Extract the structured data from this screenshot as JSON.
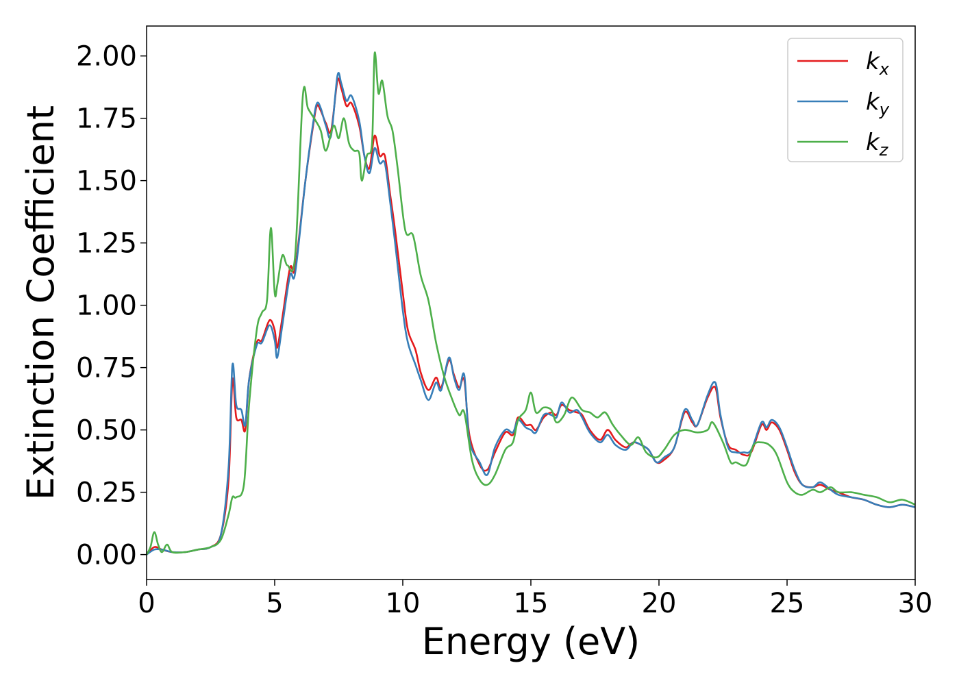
{
  "chart_data": {
    "type": "line",
    "xlabel": "Energy (eV)",
    "ylabel": "Extinction Coefficient",
    "xlim": [
      0,
      30
    ],
    "ylim": [
      -0.1,
      2.12
    ],
    "xticks": [
      "0",
      "5",
      "10",
      "15",
      "20",
      "25",
      "30"
    ],
    "yticks": [
      "0.00",
      "0.25",
      "0.50",
      "0.75",
      "1.00",
      "1.25",
      "1.50",
      "1.75",
      "2.00"
    ],
    "grid": false,
    "legend_position": "top-right",
    "legend_base": "k",
    "series": [
      {
        "name": "kx",
        "legend_sub": "x",
        "color": "#e41a1c",
        "points": [
          [
            0,
            0
          ],
          [
            0.3,
            0.03
          ],
          [
            0.6,
            0.02
          ],
          [
            1,
            0.01
          ],
          [
            1.5,
            0.01
          ],
          [
            2,
            0.02
          ],
          [
            2.5,
            0.03
          ],
          [
            2.9,
            0.08
          ],
          [
            3.2,
            0.3
          ],
          [
            3.35,
            0.7
          ],
          [
            3.5,
            0.55
          ],
          [
            3.7,
            0.54
          ],
          [
            3.85,
            0.5
          ],
          [
            4,
            0.7
          ],
          [
            4.3,
            0.85
          ],
          [
            4.5,
            0.86
          ],
          [
            4.8,
            0.94
          ],
          [
            5,
            0.9
          ],
          [
            5.1,
            0.83
          ],
          [
            5.3,
            0.95
          ],
          [
            5.6,
            1.15
          ],
          [
            5.8,
            1.15
          ],
          [
            6.2,
            1.5
          ],
          [
            6.5,
            1.72
          ],
          [
            6.65,
            1.8
          ],
          [
            6.8,
            1.78
          ],
          [
            7,
            1.73
          ],
          [
            7.2,
            1.7
          ],
          [
            7.45,
            1.9
          ],
          [
            7.6,
            1.87
          ],
          [
            7.8,
            1.8
          ],
          [
            8,
            1.81
          ],
          [
            8.3,
            1.72
          ],
          [
            8.5,
            1.6
          ],
          [
            8.7,
            1.55
          ],
          [
            8.9,
            1.68
          ],
          [
            9.1,
            1.6
          ],
          [
            9.3,
            1.6
          ],
          [
            9.5,
            1.45
          ],
          [
            9.7,
            1.3
          ],
          [
            10,
            1.05
          ],
          [
            10.2,
            0.9
          ],
          [
            10.5,
            0.82
          ],
          [
            10.7,
            0.73
          ],
          [
            11,
            0.66
          ],
          [
            11.3,
            0.71
          ],
          [
            11.5,
            0.67
          ],
          [
            11.8,
            0.78
          ],
          [
            12,
            0.72
          ],
          [
            12.2,
            0.67
          ],
          [
            12.4,
            0.7
          ],
          [
            12.6,
            0.48
          ],
          [
            13,
            0.36
          ],
          [
            13.3,
            0.34
          ],
          [
            13.6,
            0.41
          ],
          [
            14,
            0.49
          ],
          [
            14.3,
            0.48
          ],
          [
            14.5,
            0.55
          ],
          [
            14.8,
            0.52
          ],
          [
            15,
            0.52
          ],
          [
            15.2,
            0.5
          ],
          [
            15.5,
            0.55
          ],
          [
            15.8,
            0.57
          ],
          [
            16,
            0.56
          ],
          [
            16.2,
            0.6
          ],
          [
            16.5,
            0.58
          ],
          [
            16.8,
            0.57
          ],
          [
            17,
            0.56
          ],
          [
            17.3,
            0.5
          ],
          [
            17.7,
            0.46
          ],
          [
            18,
            0.5
          ],
          [
            18.3,
            0.46
          ],
          [
            18.7,
            0.43
          ],
          [
            19,
            0.45
          ],
          [
            19.3,
            0.44
          ],
          [
            19.6,
            0.42
          ],
          [
            19.9,
            0.37
          ],
          [
            20.2,
            0.38
          ],
          [
            20.6,
            0.43
          ],
          [
            21,
            0.57
          ],
          [
            21.3,
            0.53
          ],
          [
            21.5,
            0.52
          ],
          [
            21.9,
            0.63
          ],
          [
            22.2,
            0.67
          ],
          [
            22.4,
            0.55
          ],
          [
            22.7,
            0.44
          ],
          [
            23,
            0.42
          ],
          [
            23.3,
            0.4
          ],
          [
            23.6,
            0.41
          ],
          [
            24,
            0.52
          ],
          [
            24.2,
            0.5
          ],
          [
            24.4,
            0.53
          ],
          [
            24.7,
            0.5
          ],
          [
            25,
            0.42
          ],
          [
            25.3,
            0.33
          ],
          [
            25.6,
            0.28
          ],
          [
            26,
            0.27
          ],
          [
            26.3,
            0.28
          ],
          [
            26.7,
            0.26
          ],
          [
            27,
            0.25
          ],
          [
            27.5,
            0.23
          ],
          [
            28,
            0.22
          ],
          [
            28.5,
            0.2
          ],
          [
            29,
            0.19
          ],
          [
            29.5,
            0.2
          ],
          [
            30,
            0.19
          ]
        ]
      },
      {
        "name": "ky",
        "legend_sub": "y",
        "color": "#377eb8",
        "points": [
          [
            0,
            0
          ],
          [
            0.3,
            0.02
          ],
          [
            0.6,
            0.02
          ],
          [
            1,
            0.01
          ],
          [
            1.5,
            0.01
          ],
          [
            2,
            0.02
          ],
          [
            2.5,
            0.03
          ],
          [
            2.9,
            0.08
          ],
          [
            3.2,
            0.35
          ],
          [
            3.35,
            0.76
          ],
          [
            3.5,
            0.6
          ],
          [
            3.7,
            0.58
          ],
          [
            3.85,
            0.52
          ],
          [
            4,
            0.7
          ],
          [
            4.3,
            0.84
          ],
          [
            4.5,
            0.85
          ],
          [
            4.8,
            0.92
          ],
          [
            5,
            0.86
          ],
          [
            5.1,
            0.79
          ],
          [
            5.3,
            0.92
          ],
          [
            5.6,
            1.12
          ],
          [
            5.8,
            1.13
          ],
          [
            6.2,
            1.5
          ],
          [
            6.5,
            1.73
          ],
          [
            6.65,
            1.81
          ],
          [
            6.8,
            1.79
          ],
          [
            7,
            1.72
          ],
          [
            7.2,
            1.68
          ],
          [
            7.45,
            1.92
          ],
          [
            7.6,
            1.89
          ],
          [
            7.8,
            1.82
          ],
          [
            8,
            1.84
          ],
          [
            8.3,
            1.74
          ],
          [
            8.5,
            1.6
          ],
          [
            8.7,
            1.53
          ],
          [
            8.9,
            1.63
          ],
          [
            9.1,
            1.57
          ],
          [
            9.3,
            1.57
          ],
          [
            9.5,
            1.42
          ],
          [
            9.7,
            1.25
          ],
          [
            10,
            0.98
          ],
          [
            10.2,
            0.85
          ],
          [
            10.5,
            0.76
          ],
          [
            10.7,
            0.7
          ],
          [
            11,
            0.62
          ],
          [
            11.3,
            0.69
          ],
          [
            11.5,
            0.66
          ],
          [
            11.8,
            0.79
          ],
          [
            12,
            0.71
          ],
          [
            12.2,
            0.66
          ],
          [
            12.4,
            0.72
          ],
          [
            12.6,
            0.46
          ],
          [
            13,
            0.37
          ],
          [
            13.3,
            0.32
          ],
          [
            13.6,
            0.43
          ],
          [
            14,
            0.5
          ],
          [
            14.3,
            0.49
          ],
          [
            14.5,
            0.54
          ],
          [
            14.8,
            0.51
          ],
          [
            15,
            0.5
          ],
          [
            15.2,
            0.49
          ],
          [
            15.5,
            0.56
          ],
          [
            15.8,
            0.56
          ],
          [
            16,
            0.55
          ],
          [
            16.2,
            0.61
          ],
          [
            16.5,
            0.57
          ],
          [
            16.8,
            0.58
          ],
          [
            17,
            0.55
          ],
          [
            17.3,
            0.49
          ],
          [
            17.7,
            0.45
          ],
          [
            18,
            0.48
          ],
          [
            18.3,
            0.44
          ],
          [
            18.7,
            0.42
          ],
          [
            19,
            0.45
          ],
          [
            19.3,
            0.44
          ],
          [
            19.6,
            0.42
          ],
          [
            19.9,
            0.37
          ],
          [
            20.2,
            0.39
          ],
          [
            20.6,
            0.43
          ],
          [
            21,
            0.58
          ],
          [
            21.3,
            0.54
          ],
          [
            21.5,
            0.52
          ],
          [
            21.9,
            0.64
          ],
          [
            22.2,
            0.69
          ],
          [
            22.4,
            0.56
          ],
          [
            22.7,
            0.43
          ],
          [
            23,
            0.41
          ],
          [
            23.3,
            0.41
          ],
          [
            23.6,
            0.42
          ],
          [
            24,
            0.53
          ],
          [
            24.2,
            0.51
          ],
          [
            24.4,
            0.54
          ],
          [
            24.7,
            0.51
          ],
          [
            25,
            0.43
          ],
          [
            25.3,
            0.34
          ],
          [
            25.6,
            0.28
          ],
          [
            26,
            0.27
          ],
          [
            26.3,
            0.29
          ],
          [
            26.7,
            0.26
          ],
          [
            27,
            0.24
          ],
          [
            27.5,
            0.23
          ],
          [
            28,
            0.22
          ],
          [
            28.5,
            0.2
          ],
          [
            29,
            0.19
          ],
          [
            29.5,
            0.2
          ],
          [
            30,
            0.19
          ]
        ]
      },
      {
        "name": "kz",
        "legend_sub": "z",
        "color": "#4daf4a",
        "points": [
          [
            0,
            0
          ],
          [
            0.15,
            0.03
          ],
          [
            0.3,
            0.09
          ],
          [
            0.45,
            0.04
          ],
          [
            0.6,
            0.01
          ],
          [
            0.8,
            0.04
          ],
          [
            1,
            0.01
          ],
          [
            1.5,
            0.01
          ],
          [
            2,
            0.02
          ],
          [
            2.5,
            0.03
          ],
          [
            2.9,
            0.06
          ],
          [
            3.2,
            0.16
          ],
          [
            3.35,
            0.23
          ],
          [
            3.5,
            0.23
          ],
          [
            3.8,
            0.28
          ],
          [
            4,
            0.6
          ],
          [
            4.3,
            0.9
          ],
          [
            4.5,
            0.97
          ],
          [
            4.7,
            1.02
          ],
          [
            4.85,
            1.31
          ],
          [
            5,
            1.05
          ],
          [
            5.1,
            1.08
          ],
          [
            5.3,
            1.2
          ],
          [
            5.5,
            1.16
          ],
          [
            5.8,
            1.2
          ],
          [
            6.1,
            1.84
          ],
          [
            6.3,
            1.79
          ],
          [
            6.6,
            1.74
          ],
          [
            6.8,
            1.7
          ],
          [
            7,
            1.62
          ],
          [
            7.3,
            1.72
          ],
          [
            7.5,
            1.67
          ],
          [
            7.7,
            1.75
          ],
          [
            7.9,
            1.65
          ],
          [
            8.1,
            1.62
          ],
          [
            8.3,
            1.61
          ],
          [
            8.4,
            1.5
          ],
          [
            8.6,
            1.6
          ],
          [
            8.8,
            1.65
          ],
          [
            8.9,
            2.01
          ],
          [
            9.05,
            1.85
          ],
          [
            9.2,
            1.9
          ],
          [
            9.4,
            1.76
          ],
          [
            9.6,
            1.7
          ],
          [
            9.8,
            1.55
          ],
          [
            10.1,
            1.3
          ],
          [
            10.4,
            1.28
          ],
          [
            10.7,
            1.12
          ],
          [
            11,
            1.02
          ],
          [
            11.3,
            0.85
          ],
          [
            11.6,
            0.72
          ],
          [
            11.9,
            0.63
          ],
          [
            12.2,
            0.56
          ],
          [
            12.4,
            0.57
          ],
          [
            12.7,
            0.38
          ],
          [
            13,
            0.3
          ],
          [
            13.3,
            0.28
          ],
          [
            13.6,
            0.32
          ],
          [
            14,
            0.42
          ],
          [
            14.3,
            0.45
          ],
          [
            14.5,
            0.54
          ],
          [
            14.8,
            0.58
          ],
          [
            15,
            0.65
          ],
          [
            15.2,
            0.57
          ],
          [
            15.5,
            0.59
          ],
          [
            15.8,
            0.58
          ],
          [
            16,
            0.53
          ],
          [
            16.3,
            0.56
          ],
          [
            16.6,
            0.63
          ],
          [
            17,
            0.58
          ],
          [
            17.3,
            0.57
          ],
          [
            17.6,
            0.55
          ],
          [
            17.9,
            0.57
          ],
          [
            18.2,
            0.52
          ],
          [
            18.5,
            0.48
          ],
          [
            18.9,
            0.44
          ],
          [
            19.2,
            0.47
          ],
          [
            19.5,
            0.41
          ],
          [
            19.9,
            0.39
          ],
          [
            20.2,
            0.42
          ],
          [
            20.6,
            0.48
          ],
          [
            21,
            0.5
          ],
          [
            21.5,
            0.49
          ],
          [
            21.9,
            0.5
          ],
          [
            22.1,
            0.53
          ],
          [
            22.5,
            0.45
          ],
          [
            22.8,
            0.37
          ],
          [
            23,
            0.37
          ],
          [
            23.4,
            0.36
          ],
          [
            23.7,
            0.44
          ],
          [
            24,
            0.45
          ],
          [
            24.3,
            0.44
          ],
          [
            24.6,
            0.4
          ],
          [
            25,
            0.29
          ],
          [
            25.3,
            0.25
          ],
          [
            25.6,
            0.24
          ],
          [
            26,
            0.26
          ],
          [
            26.3,
            0.25
          ],
          [
            26.7,
            0.27
          ],
          [
            27,
            0.25
          ],
          [
            27.5,
            0.25
          ],
          [
            28,
            0.24
          ],
          [
            28.5,
            0.23
          ],
          [
            29,
            0.21
          ],
          [
            29.5,
            0.22
          ],
          [
            30,
            0.2
          ]
        ]
      }
    ]
  }
}
